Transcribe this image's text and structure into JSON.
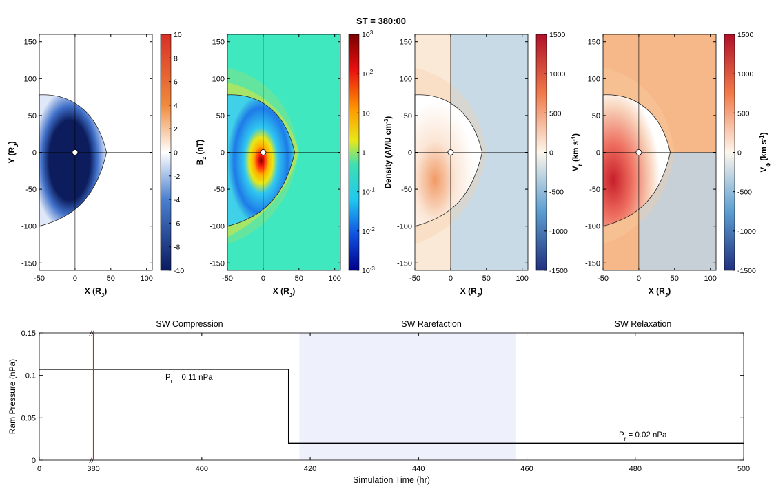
{
  "title": "ST = 380:00",
  "colors": {
    "title": "#1a1ad8",
    "trace": "#000000",
    "marker": "#d42020",
    "shade": "#eef0fc",
    "rarefaction_label": "#2020c0"
  },
  "panels": [
    {
      "id": "bz",
      "xlabel": "X (R",
      "xlabel_sub": "J",
      "xlabel_end": ")",
      "ylabel": "Y (R",
      "ylabel_sub": "J",
      "ylabel_end": ")",
      "cb_label": "B",
      "cb_label_sub": "z",
      "cb_label_end": " (nT)",
      "cb_ticks": [
        "10",
        "8",
        "6",
        "4",
        "2",
        "0",
        "-2",
        "-4",
        "-6",
        "-8",
        "-10"
      ],
      "cb_scale": "bz"
    },
    {
      "id": "density",
      "xlabel": "X (R",
      "xlabel_sub": "J",
      "xlabel_end": ")",
      "ylabel": "",
      "cb_label": "Density (AMU cm",
      "cb_label_sup": "-3",
      "cb_label_end": ")",
      "cb_ticks_log": [
        {
          "base": "10",
          "exp": "3"
        },
        {
          "base": "10",
          "exp": "2"
        },
        {
          "base": "10",
          "exp": ""
        },
        {
          "base": "1",
          "exp": ""
        },
        {
          "base": "10",
          "exp": "-1"
        },
        {
          "base": "10",
          "exp": "-2"
        },
        {
          "base": "10",
          "exp": "-3"
        }
      ],
      "cb_scale": "jet"
    },
    {
      "id": "vr",
      "xlabel": "X (R",
      "xlabel_sub": "J",
      "xlabel_end": ")",
      "ylabel": "",
      "cb_label": "V",
      "cb_label_sub": "r",
      "cb_label_end": " (km s",
      "cb_label_sup": "-1",
      "cb_label_end2": ")",
      "cb_ticks": [
        "1500",
        "1000",
        "500",
        "0",
        "-500",
        "-1000",
        "-1500"
      ],
      "cb_scale": "div"
    },
    {
      "id": "vphi",
      "xlabel": "X (R",
      "xlabel_sub": "J",
      "xlabel_end": ")",
      "ylabel": "",
      "cb_label": "V",
      "cb_label_sub": "ϕ",
      "cb_label_end": " (km s",
      "cb_label_sup": "-1",
      "cb_label_end2": ")",
      "cb_ticks": [
        "1500",
        "1000",
        "500",
        "0",
        "-500",
        "-1000",
        "-1500"
      ],
      "cb_scale": "div"
    }
  ],
  "map_axes": {
    "xlim": [
      -50,
      108
    ],
    "ylim": [
      -160,
      160
    ],
    "xticks": [
      "-50",
      "0",
      "50",
      "100"
    ],
    "yticks": [
      "150",
      "100",
      "50",
      "0",
      "-50",
      "-100",
      "-150"
    ]
  },
  "chart_data": {
    "type": "line",
    "title": "",
    "xlabel": "Simulation Time (hr)",
    "ylabel": "Ram Pressure (nPa)",
    "xlim": [
      370,
      500
    ],
    "ylim": [
      0,
      0.15
    ],
    "axis_break_label": "//",
    "xticks": [
      "0",
      "380",
      "400",
      "420",
      "440",
      "460",
      "480",
      "500"
    ],
    "yticks": [
      "0.15",
      "0.1",
      "0.05",
      "0"
    ],
    "series": [
      {
        "name": "Ram Pressure",
        "x": [
          370,
          416,
          416,
          500
        ],
        "y": [
          0.107,
          0.107,
          0.02,
          0.02
        ]
      }
    ],
    "current_time": 380,
    "shaded_region": [
      418,
      458
    ],
    "phases": [
      "SW Compression",
      "SW Rarefaction",
      "SW Relaxation"
    ],
    "annotations": [
      {
        "text": "P",
        "sub": "r",
        "rest": " = 0.11 nPa"
      },
      {
        "text": "P",
        "sub": "r",
        "rest": " = 0.02 nPa"
      }
    ]
  }
}
